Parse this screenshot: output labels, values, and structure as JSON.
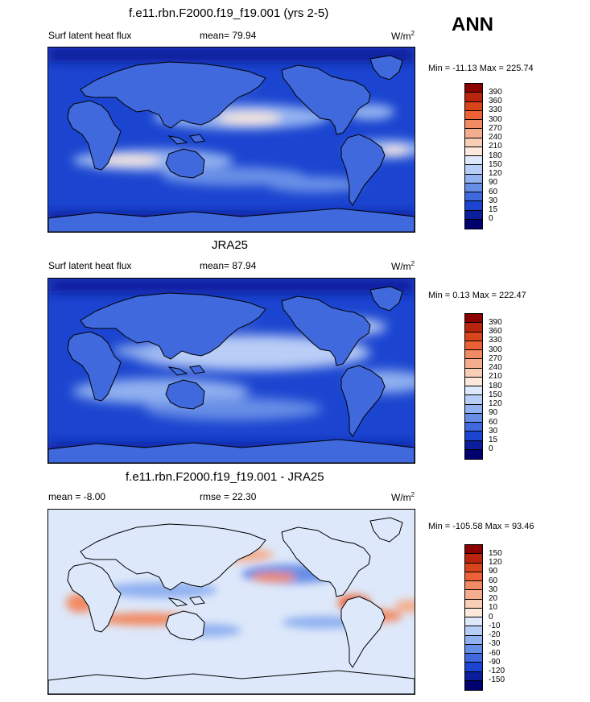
{
  "header": {
    "season": "ANN"
  },
  "panels": [
    {
      "id": "model",
      "title": "f.e11.rbn.F2000.f19_f19.001 (yrs 2-5)",
      "left_label": "Surf latent heat flux",
      "center_label": "mean=  79.94",
      "units": "W/m",
      "units_exp": "2",
      "minmax": "Min = -11.13 Max = 225.74",
      "levels": [
        "390",
        "360",
        "330",
        "300",
        "270",
        "240",
        "210",
        "180",
        "150",
        "120",
        "90",
        "60",
        "30",
        "15",
        "0"
      ],
      "colors": [
        "#8b0000",
        "#b8250c",
        "#d9441a",
        "#ec6236",
        "#f28a63",
        "#f6ad8e",
        "#f8cfb6",
        "#fce9dc",
        "#dde8fa",
        "#b9cef6",
        "#91b1f0",
        "#678ee6",
        "#3f69dc",
        "#1b45d0",
        "#0a1d9a",
        "#00006e"
      ]
    },
    {
      "id": "obs",
      "title": "JRA25",
      "left_label": "Surf latent heat flux",
      "center_label": "mean=  87.94",
      "units": "W/m",
      "units_exp": "2",
      "minmax": "Min =   0.13 Max = 222.47",
      "levels": [
        "390",
        "360",
        "330",
        "300",
        "270",
        "240",
        "210",
        "180",
        "150",
        "120",
        "90",
        "60",
        "30",
        "15",
        "0"
      ],
      "colors": [
        "#8b0000",
        "#b8250c",
        "#d9441a",
        "#ec6236",
        "#f28a63",
        "#f6ad8e",
        "#f8cfb6",
        "#fce9dc",
        "#dde8fa",
        "#b9cef6",
        "#91b1f0",
        "#678ee6",
        "#3f69dc",
        "#1b45d0",
        "#0a1d9a",
        "#00006e"
      ]
    },
    {
      "id": "diff",
      "title": "f.e11.rbn.F2000.f19_f19.001 - JRA25",
      "left_label": "mean =  -8.00",
      "center_label": "rmse =  22.30",
      "units": "W/m",
      "units_exp": "2",
      "minmax": "Min = -105.58 Max =  93.46",
      "levels": [
        "150",
        "120",
        "90",
        "60",
        "30",
        "20",
        "10",
        "0",
        "-10",
        "-20",
        "-30",
        "-60",
        "-90",
        "-120",
        "-150"
      ],
      "colors": [
        "#8b0000",
        "#b8250c",
        "#d9441a",
        "#ec6236",
        "#f28a63",
        "#f6ad8e",
        "#f8cfb6",
        "#fce9dc",
        "#dde8fa",
        "#b9cef6",
        "#91b1f0",
        "#678ee6",
        "#3f69dc",
        "#1b45d0",
        "#0a1d9a",
        "#00006e"
      ]
    }
  ]
}
